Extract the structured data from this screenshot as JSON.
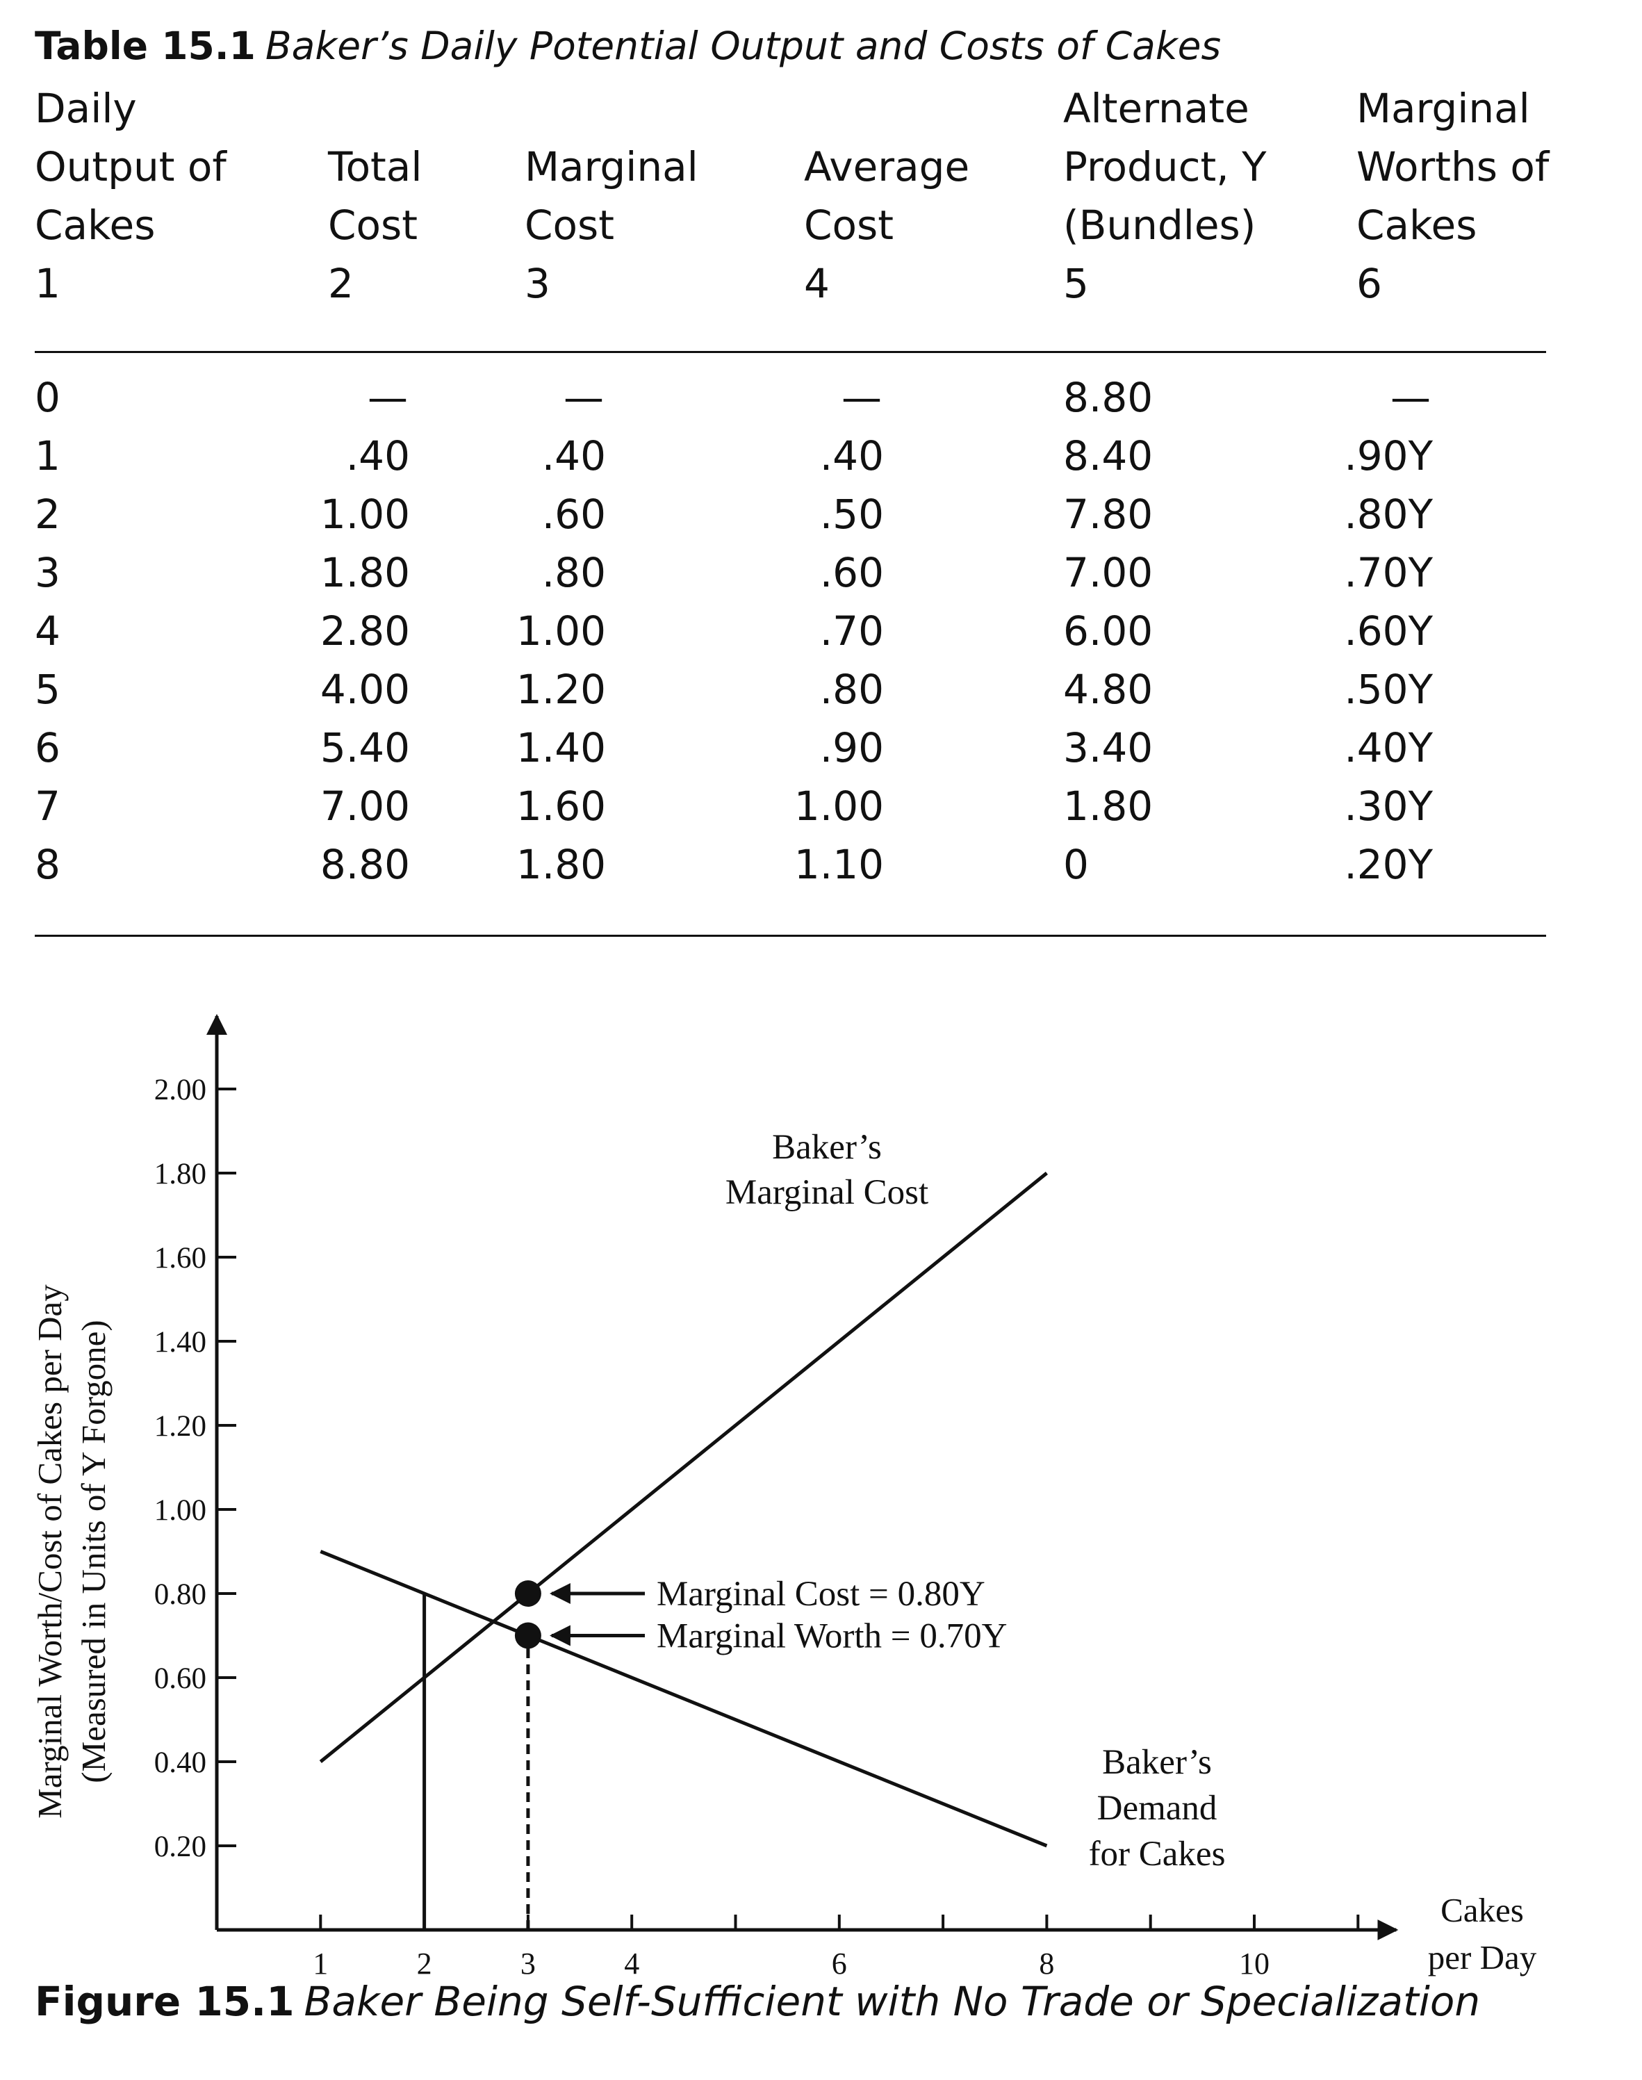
{
  "table": {
    "label": "Table 15.1",
    "title": "Baker’s Daily Potential Output and Costs of Cakes",
    "headers": [
      [
        "Daily",
        "Output of",
        "Cakes",
        "1"
      ],
      [
        "Total",
        "Cost",
        "2"
      ],
      [
        "Marginal",
        "Cost",
        "3"
      ],
      [
        "Average",
        "Cost",
        "4"
      ],
      [
        "Alternate",
        "Product, Y",
        "(Bundles)",
        "5"
      ],
      [
        "Marginal",
        "Worths of",
        "Cakes",
        "6"
      ]
    ],
    "rows": [
      [
        "0",
        "—",
        "—",
        "—",
        "8.80",
        "—"
      ],
      [
        "1",
        ".40",
        ".40",
        ".40",
        "8.40",
        ".90Y"
      ],
      [
        "2",
        "1.00",
        ".60",
        ".50",
        "7.80",
        ".80Y"
      ],
      [
        "3",
        "1.80",
        ".80",
        ".60",
        "7.00",
        ".70Y"
      ],
      [
        "4",
        "2.80",
        "1.00",
        ".70",
        "6.00",
        ".60Y"
      ],
      [
        "5",
        "4.00",
        "1.20",
        ".80",
        "4.80",
        ".50Y"
      ],
      [
        "6",
        "5.40",
        "1.40",
        ".90",
        "3.40",
        ".40Y"
      ],
      [
        "7",
        "7.00",
        "1.60",
        "1.00",
        "1.80",
        ".30Y"
      ],
      [
        "8",
        "8.80",
        "1.80",
        "1.10",
        "0",
        ".20Y"
      ]
    ]
  },
  "chart_data": {
    "type": "line",
    "ylabel_line1": "Marginal Worth/Cost of Cakes per Day",
    "ylabel_line2": "(Measured in Units of Y Forgone)",
    "xlabel_line1": "Cakes",
    "xlabel_line2": "per Day",
    "xlim": [
      0,
      11
    ],
    "ylim": [
      0,
      2.0
    ],
    "x_ticks": [
      1,
      2,
      3,
      4,
      5,
      6,
      7,
      8,
      9,
      10,
      11
    ],
    "x_tick_labels": [
      {
        "x": 1,
        "label": "1"
      },
      {
        "x": 2,
        "label": "2"
      },
      {
        "x": 3,
        "label": "3"
      },
      {
        "x": 4,
        "label": "4"
      },
      {
        "x": 6,
        "label": "6"
      },
      {
        "x": 8,
        "label": "8"
      },
      {
        "x": 10,
        "label": "10"
      }
    ],
    "y_ticks": [
      0.2,
      0.4,
      0.6,
      0.8,
      1.0,
      1.2,
      1.4,
      1.6,
      1.8,
      2.0
    ],
    "y_tick_labels": [
      "0.20",
      "0.40",
      "0.60",
      "0.80",
      "1.00",
      "1.20",
      "1.40",
      "1.60",
      "1.80",
      "2.00"
    ],
    "series": [
      {
        "name": "Baker’s Marginal Cost",
        "label_lines": [
          "Baker’s",
          "Marginal Cost"
        ],
        "points": [
          [
            1,
            0.4
          ],
          [
            8,
            1.8
          ]
        ]
      },
      {
        "name": "Baker’s Demand for Cakes",
        "label_lines": [
          "Baker’s",
          "Demand",
          "for Cakes"
        ],
        "points": [
          [
            1,
            0.9
          ],
          [
            8,
            0.2
          ]
        ]
      }
    ],
    "markers": [
      {
        "x": 3,
        "y": 0.8,
        "annotation": "Marginal Cost = 0.80Y"
      },
      {
        "x": 3,
        "y": 0.7,
        "annotation": "Marginal Worth = 0.70Y"
      }
    ],
    "guides": [
      {
        "style": "solid",
        "x": 2,
        "y": 0.8
      },
      {
        "style": "dashed",
        "x": 3,
        "y": 0.7
      }
    ]
  },
  "figure": {
    "label": "Figure 15.1",
    "title": "Baker Being Self-Sufficient with No Trade or Specialization"
  }
}
